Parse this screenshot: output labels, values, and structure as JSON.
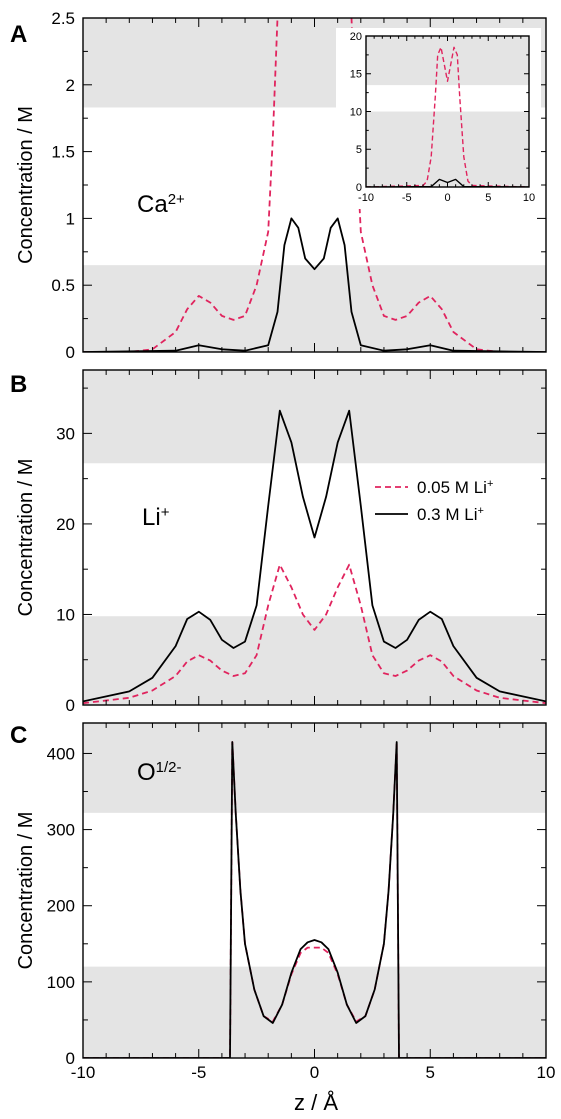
{
  "figure": {
    "xlabel": "z / Å"
  },
  "colors": {
    "dashed_series": "#e0245e",
    "solid_series": "#000000",
    "shading": "#e4e4e4"
  },
  "chart_data": [
    {
      "panel": "A",
      "type": "line",
      "ion_label": "Ca",
      "ion_sup": "2+",
      "ylabel": "Concentration / M",
      "xlim": [
        -10,
        10
      ],
      "ylim": [
        0,
        2.5
      ],
      "yticks": [
        "0",
        "0.5",
        "1",
        "1.5",
        "2",
        "2.5"
      ],
      "ytick_values": [
        0,
        0.5,
        1,
        1.5,
        2,
        2.5
      ],
      "xticks": [],
      "shaded_bands": [
        [
          0,
          0.65
        ],
        [
          1.83,
          2.5
        ]
      ],
      "series": [
        {
          "style": "dashed",
          "x": [
            -10,
            -8,
            -7,
            -6,
            -5.5,
            -5,
            -4.5,
            -4,
            -3.5,
            -3,
            -2.5,
            -2,
            -1.8,
            -1.6,
            -1.4,
            1.4,
            1.6,
            1.8,
            2,
            2.5,
            3,
            3.5,
            4,
            4.5,
            5,
            5.5,
            6,
            7,
            8,
            10
          ],
          "y": [
            0,
            0,
            0.02,
            0.15,
            0.32,
            0.42,
            0.37,
            0.27,
            0.24,
            0.27,
            0.5,
            0.9,
            1.6,
            2.5,
            3.2,
            3.2,
            2.5,
            1.6,
            0.9,
            0.5,
            0.27,
            0.24,
            0.27,
            0.37,
            0.42,
            0.32,
            0.15,
            0.02,
            0,
            0
          ]
        },
        {
          "style": "solid",
          "x": [
            -10,
            -6,
            -5,
            -4,
            -3,
            -2,
            -1.6,
            -1.3,
            -1,
            -0.7,
            -0.4,
            0,
            0.4,
            0.7,
            1,
            1.3,
            1.6,
            2,
            3,
            4,
            5,
            6,
            10
          ],
          "y": [
            0,
            0.01,
            0.05,
            0.02,
            0.01,
            0.05,
            0.3,
            0.8,
            1.0,
            0.93,
            0.7,
            0.62,
            0.7,
            0.93,
            1.0,
            0.8,
            0.3,
            0.05,
            0.01,
            0.02,
            0.05,
            0.01,
            0
          ]
        }
      ],
      "inset": {
        "xlim": [
          -10,
          10
        ],
        "ylim": [
          0,
          20
        ],
        "xticks": [
          "-10",
          "-5",
          "0",
          "5",
          "10"
        ],
        "xtick_values": [
          -10,
          -5,
          0,
          5,
          10
        ],
        "yticks": [
          "0",
          "5",
          "10",
          "15",
          "20"
        ],
        "ytick_values": [
          0,
          5,
          10,
          15,
          20
        ],
        "shaded_bands": [
          [
            0,
            10
          ],
          [
            13.5,
            20
          ]
        ],
        "series": [
          {
            "style": "dashed",
            "x": [
              -10,
              -3,
              -2.5,
              -2,
              -1.5,
              -1.2,
              -0.8,
              0,
              0.8,
              1.2,
              1.5,
              2,
              2.5,
              3,
              10
            ],
            "y": [
              0,
              0.2,
              0.8,
              4,
              12,
              17.5,
              18.5,
              14,
              18.5,
              17.5,
              12,
              4,
              0.8,
              0.2,
              0
            ]
          },
          {
            "style": "solid",
            "x": [
              -10,
              -2,
              -1,
              0,
              1,
              2,
              10
            ],
            "y": [
              0,
              0.05,
              1,
              0.6,
              1,
              0.05,
              0
            ]
          }
        ]
      }
    },
    {
      "panel": "B",
      "type": "line",
      "ion_label": "Li",
      "ion_sup": "+",
      "ylabel": "Concentration / M",
      "xlim": [
        -10,
        10
      ],
      "ylim": [
        0,
        37
      ],
      "yticks": [
        "0",
        "10",
        "20",
        "30"
      ],
      "ytick_values": [
        0,
        10,
        20,
        30
      ],
      "xticks": [],
      "shaded_bands": [
        [
          0,
          9.8
        ],
        [
          26.7,
          37
        ]
      ],
      "legend": [
        {
          "text": "0.05 M Li",
          "sup": "+",
          "style": "dashed"
        },
        {
          "text": "0.3 M Li",
          "sup": "+",
          "style": "solid"
        }
      ],
      "series": [
        {
          "name": "0.05 M Li+",
          "style": "dashed",
          "x": [
            -10,
            -8,
            -7,
            -6,
            -5.5,
            -5,
            -4.5,
            -4,
            -3.5,
            -3,
            -2.5,
            -2,
            -1.5,
            -1,
            -0.5,
            0,
            0.5,
            1,
            1.5,
            2,
            2.5,
            3,
            3.5,
            4,
            4.5,
            5,
            5.5,
            6,
            7,
            8,
            10
          ],
          "y": [
            0.2,
            0.8,
            1.6,
            3.2,
            4.8,
            5.5,
            4.9,
            3.8,
            3.2,
            3.5,
            5.5,
            11,
            15.5,
            13,
            10,
            8.3,
            10,
            13,
            15.5,
            11,
            5.5,
            3.5,
            3.2,
            3.8,
            4.9,
            5.5,
            4.8,
            3.2,
            1.6,
            0.8,
            0.2
          ]
        },
        {
          "name": "0.3 M Li+",
          "style": "solid",
          "x": [
            -10,
            -8,
            -7,
            -6,
            -5.5,
            -5,
            -4.5,
            -4,
            -3.5,
            -3,
            -2.5,
            -2,
            -1.5,
            -1,
            -0.5,
            0,
            0.5,
            1,
            1.5,
            2,
            2.5,
            3,
            3.5,
            4,
            4.5,
            5,
            5.5,
            6,
            7,
            8,
            10
          ],
          "y": [
            0.4,
            1.5,
            3,
            6.5,
            9.5,
            10.3,
            9.4,
            7.2,
            6.3,
            7,
            11,
            22,
            32.5,
            29,
            23,
            18.5,
            23,
            29,
            32.5,
            22,
            11,
            7,
            6.3,
            7.2,
            9.4,
            10.3,
            9.5,
            6.5,
            3,
            1.5,
            0.4
          ]
        }
      ]
    },
    {
      "panel": "C",
      "type": "line",
      "ion_label": "O",
      "ion_sup": "1/2-",
      "ylabel": "Concentration / M",
      "xlim": [
        -10,
        10
      ],
      "ylim": [
        0,
        440
      ],
      "yticks": [
        "0",
        "100",
        "200",
        "300",
        "400"
      ],
      "ytick_values": [
        0,
        100,
        200,
        300,
        400
      ],
      "xticks": [
        "-10",
        "-5",
        "0",
        "5",
        "10"
      ],
      "xtick_values": [
        -10,
        -5,
        0,
        5,
        10
      ],
      "shaded_bands": [
        [
          0,
          120
        ],
        [
          322,
          440
        ]
      ],
      "series": [
        {
          "style": "dashed",
          "x": [
            -10,
            -3.65,
            -3.55,
            -3.4,
            -3.2,
            -3,
            -2.6,
            -2.2,
            -1.8,
            -1.4,
            -1,
            -0.6,
            -0.3,
            0,
            0.3,
            0.6,
            1,
            1.4,
            1.8,
            2.2,
            2.6,
            3,
            3.2,
            3.4,
            3.55,
            3.65,
            10
          ],
          "y": [
            0,
            0,
            415,
            320,
            220,
            150,
            90,
            55,
            48,
            70,
            110,
            138,
            145,
            145,
            145,
            138,
            110,
            70,
            48,
            55,
            90,
            150,
            220,
            320,
            415,
            0,
            0
          ]
        },
        {
          "style": "solid",
          "x": [
            -10,
            -3.65,
            -3.55,
            -3.4,
            -3.2,
            -3,
            -2.6,
            -2.2,
            -1.8,
            -1.4,
            -1,
            -0.6,
            -0.3,
            0,
            0.3,
            0.6,
            1,
            1.4,
            1.8,
            2.2,
            2.6,
            3,
            3.2,
            3.4,
            3.55,
            3.65,
            10
          ],
          "y": [
            0,
            0,
            415,
            320,
            220,
            150,
            90,
            55,
            46,
            70,
            112,
            143,
            152,
            155,
            152,
            143,
            112,
            70,
            46,
            55,
            90,
            150,
            220,
            320,
            415,
            0,
            0
          ]
        }
      ]
    }
  ]
}
